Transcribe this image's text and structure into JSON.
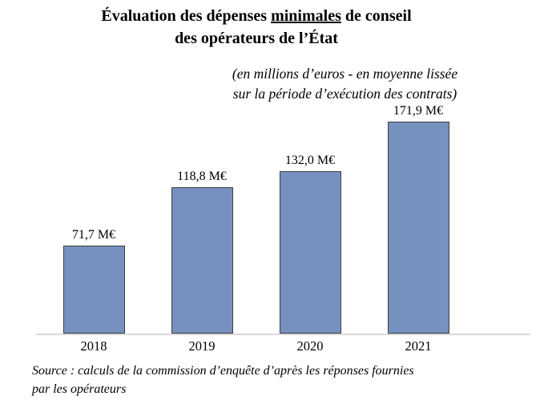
{
  "title": {
    "line1_pre": "Évaluation des dépenses ",
    "line1_underlined": "minimales",
    "line1_post": " de conseil",
    "line2": "des opérateurs de l’État"
  },
  "subtitle": {
    "line1": "(en millions d’euros - en moyenne lissée",
    "line2": "sur la période d’exécution des contrats)"
  },
  "source": {
    "line1": "Source : calculs de la commission d’enquête d’après les réponses fournies",
    "line2": "par les opérateurs"
  },
  "colors": {
    "bar_fill": "#7691bf",
    "bar_border": "#3f3f3f",
    "axis_line": "#d9d9d9",
    "text": "#000000"
  },
  "chart_data": {
    "type": "bar",
    "title": "Évaluation des dépenses minimales de conseil des opérateurs de l’État",
    "subtitle": "(en millions d’euros - en moyenne lissée sur la période d’exécution des contrats)",
    "categories": [
      "2018",
      "2019",
      "2020",
      "2021"
    ],
    "values": [
      71.7,
      118.8,
      132.0,
      171.9
    ],
    "value_labels": [
      "71,7 M€",
      "118,8 M€",
      "132,0 M€",
      "171,9 M€"
    ],
    "unit": "M€",
    "xlabel": "",
    "ylabel": "",
    "ylim": [
      0,
      180
    ],
    "grid": false,
    "legend": null,
    "source": "Source : calculs de la commission d’enquête d’après les réponses fournies par les opérateurs"
  }
}
